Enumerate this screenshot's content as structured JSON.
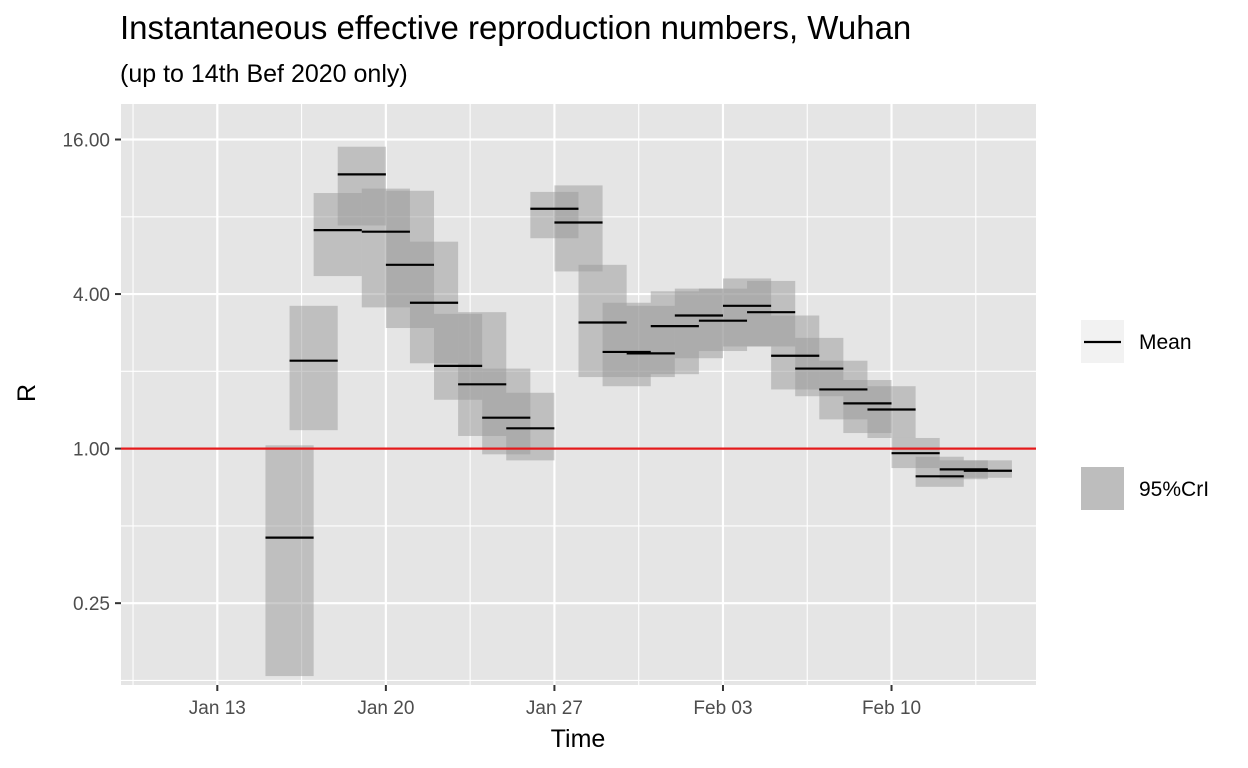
{
  "chart_data": {
    "type": "line",
    "title": "Instantaneous effective reproduction numbers, Wuhan",
    "subtitle": "(up to 14th Bef 2020 only)",
    "xlabel": "Time",
    "ylabel": "R",
    "y_scale": "log2",
    "ylim": [
      0.12,
      22
    ],
    "y_ticks": [
      {
        "value": 0.25,
        "label": "0.25"
      },
      {
        "value": 1,
        "label": "1.00"
      },
      {
        "value": 4,
        "label": "4.00"
      },
      {
        "value": 16,
        "label": "16.00"
      }
    ],
    "x_ticks": [
      "Jan 13",
      "Jan 20",
      "Jan 27",
      "Feb 03",
      "Feb 10"
    ],
    "xlim": [
      "2020-01-09",
      "2020-02-16"
    ],
    "reference_line": {
      "y": 1,
      "color": "#e41a1c"
    },
    "grid": true,
    "legend_position": "right",
    "legend": [
      {
        "type": "line",
        "label": "Mean"
      },
      {
        "type": "rect",
        "label": "95%CrI"
      }
    ],
    "colors": {
      "panel_bg": "#e5e5e5",
      "grid": "#ffffff",
      "ribbon": "#999999",
      "mean": "#000000",
      "ref_line": "#e41a1c",
      "legend_key_bg": "#f2f2f2",
      "legend_ribbon": "#bdbdbd"
    },
    "series": [
      {
        "start": "2020-01-15",
        "end": "2020-01-17",
        "mean": 0.45,
        "lower": 0.13,
        "upper": 1.03
      },
      {
        "start": "2020-01-16",
        "end": "2020-01-18",
        "mean": 2.2,
        "lower": 1.18,
        "upper": 3.6
      },
      {
        "start": "2020-01-17",
        "end": "2020-01-19",
        "mean": 7.1,
        "lower": 4.7,
        "upper": 9.9
      },
      {
        "start": "2020-01-18",
        "end": "2020-01-20",
        "mean": 11.7,
        "lower": 7.4,
        "upper": 15.0
      },
      {
        "start": "2020-01-19",
        "end": "2020-01-21",
        "mean": 7.0,
        "lower": 3.55,
        "upper": 10.3
      },
      {
        "start": "2020-01-20",
        "end": "2020-01-22",
        "mean": 5.2,
        "lower": 2.95,
        "upper": 10.1
      },
      {
        "start": "2020-01-21",
        "end": "2020-01-23",
        "mean": 3.7,
        "lower": 2.15,
        "upper": 6.4
      },
      {
        "start": "2020-01-22",
        "end": "2020-01-24",
        "mean": 2.1,
        "lower": 1.55,
        "upper": 3.35
      },
      {
        "start": "2020-01-23",
        "end": "2020-01-25",
        "mean": 1.78,
        "lower": 1.12,
        "upper": 3.4
      },
      {
        "start": "2020-01-24",
        "end": "2020-01-26",
        "mean": 1.32,
        "lower": 0.95,
        "upper": 2.05
      },
      {
        "start": "2020-01-25",
        "end": "2020-01-27",
        "mean": 1.2,
        "lower": 0.9,
        "upper": 1.65
      },
      {
        "start": "2020-01-26",
        "end": "2020-01-28",
        "mean": 8.6,
        "lower": 6.6,
        "upper": 10.0
      },
      {
        "start": "2020-01-27",
        "end": "2020-01-29",
        "mean": 7.6,
        "lower": 4.9,
        "upper": 10.6
      },
      {
        "start": "2020-01-28",
        "end": "2020-01-30",
        "mean": 3.1,
        "lower": 1.9,
        "upper": 5.2
      },
      {
        "start": "2020-01-29",
        "end": "2020-01-31",
        "mean": 2.38,
        "lower": 1.75,
        "upper": 3.7
      },
      {
        "start": "2020-01-30",
        "end": "2020-02-01",
        "mean": 2.35,
        "lower": 1.9,
        "upper": 3.6
      },
      {
        "start": "2020-01-31",
        "end": "2020-02-02",
        "mean": 3.0,
        "lower": 1.95,
        "upper": 4.1
      },
      {
        "start": "2020-02-01",
        "end": "2020-02-03",
        "mean": 3.3,
        "lower": 2.25,
        "upper": 4.2
      },
      {
        "start": "2020-02-02",
        "end": "2020-02-04",
        "mean": 3.15,
        "lower": 2.4,
        "upper": 4.2
      },
      {
        "start": "2020-02-03",
        "end": "2020-02-05",
        "mean": 3.6,
        "lower": 2.5,
        "upper": 4.6
      },
      {
        "start": "2020-02-04",
        "end": "2020-02-06",
        "mean": 3.4,
        "lower": 2.5,
        "upper": 4.5
      },
      {
        "start": "2020-02-05",
        "end": "2020-02-07",
        "mean": 2.3,
        "lower": 1.7,
        "upper": 3.3
      },
      {
        "start": "2020-02-06",
        "end": "2020-02-08",
        "mean": 2.05,
        "lower": 1.6,
        "upper": 2.7
      },
      {
        "start": "2020-02-07",
        "end": "2020-02-09",
        "mean": 1.7,
        "lower": 1.3,
        "upper": 2.2
      },
      {
        "start": "2020-02-08",
        "end": "2020-02-10",
        "mean": 1.5,
        "lower": 1.15,
        "upper": 1.85
      },
      {
        "start": "2020-02-09",
        "end": "2020-02-11",
        "mean": 1.42,
        "lower": 1.1,
        "upper": 1.75
      },
      {
        "start": "2020-02-10",
        "end": "2020-02-12",
        "mean": 0.96,
        "lower": 0.84,
        "upper": 1.1
      },
      {
        "start": "2020-02-11",
        "end": "2020-02-13",
        "mean": 0.78,
        "lower": 0.71,
        "upper": 0.93
      },
      {
        "start": "2020-02-12",
        "end": "2020-02-14",
        "mean": 0.83,
        "lower": 0.76,
        "upper": 0.9
      },
      {
        "start": "2020-02-13",
        "end": "2020-02-15",
        "mean": 0.82,
        "lower": 0.77,
        "upper": 0.9
      }
    ]
  }
}
